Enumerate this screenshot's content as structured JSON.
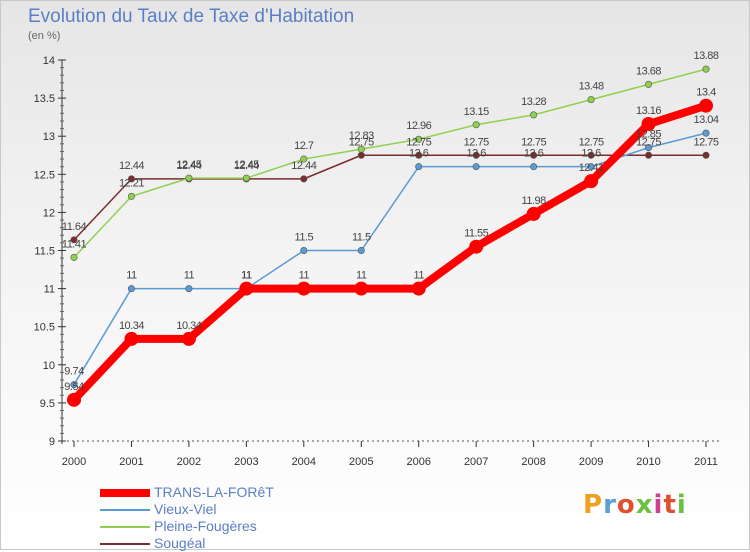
{
  "title": "Evolution du Taux de Taxe d'Habitation",
  "subtitle": "(en %)",
  "logo": "Proxiti",
  "chart_data": {
    "type": "line",
    "title": "Evolution du Taux de Taxe d'Habitation",
    "ylabel": "(en %)",
    "xlabel": "",
    "x": [
      "2000",
      "2001",
      "2002",
      "2003",
      "2004",
      "2005",
      "2006",
      "2007",
      "2008",
      "2009",
      "2010",
      "2011"
    ],
    "ylim": [
      9,
      14
    ],
    "yticks": [
      "9",
      "9.5",
      "10",
      "10.5",
      "11",
      "11.5",
      "12",
      "12.5",
      "13",
      "13.5",
      "14"
    ],
    "grid": false,
    "legend_position": "bottom-left",
    "series": [
      {
        "name": "TRANS-LA-FORêT",
        "color": "#ff0000",
        "values": [
          9.54,
          10.34,
          10.34,
          11,
          11,
          11,
          11,
          11.55,
          11.98,
          12.41,
          13.16,
          13.4
        ],
        "labels": [
          "9.54",
          "10.34",
          "10.34",
          "11",
          "11",
          "11",
          "11",
          "11.55",
          "11.98",
          "12.41",
          "13.16",
          "13.4"
        ]
      },
      {
        "name": "Vieux-Viel",
        "color": "#5b9bd5",
        "values": [
          9.74,
          11,
          11,
          11,
          11.5,
          11.5,
          12.6,
          12.6,
          12.6,
          12.6,
          12.85,
          13.04
        ],
        "labels": [
          "9.74",
          "11",
          "11",
          "11",
          "11.5",
          "11.5",
          "12.6",
          "12.6",
          "12.6",
          "12.6",
          "12.85",
          "13.04"
        ]
      },
      {
        "name": "Pleine-Fougères",
        "color": "#8fd14f",
        "values": [
          11.41,
          12.21,
          12.45,
          12.45,
          12.7,
          12.83,
          12.96,
          13.15,
          13.28,
          13.48,
          13.68,
          13.88
        ],
        "labels": [
          "11.41",
          "12.21",
          "12.45",
          "12.45",
          "12.7",
          "12.83",
          "12.96",
          "13.15",
          "13.28",
          "13.48",
          "13.68",
          "13.88"
        ]
      },
      {
        "name": "Sougéal",
        "color": "#7b2c2c",
        "values": [
          11.64,
          12.44,
          12.44,
          12.44,
          12.44,
          12.75,
          12.75,
          12.75,
          12.75,
          12.75,
          12.75,
          12.75
        ],
        "labels": [
          "11.64",
          "12.44",
          "12.44",
          "12.44",
          "12.44",
          "12.75",
          "12.75",
          "12.75",
          "12.75",
          "12.75",
          "12.75",
          "12.75"
        ]
      }
    ]
  }
}
